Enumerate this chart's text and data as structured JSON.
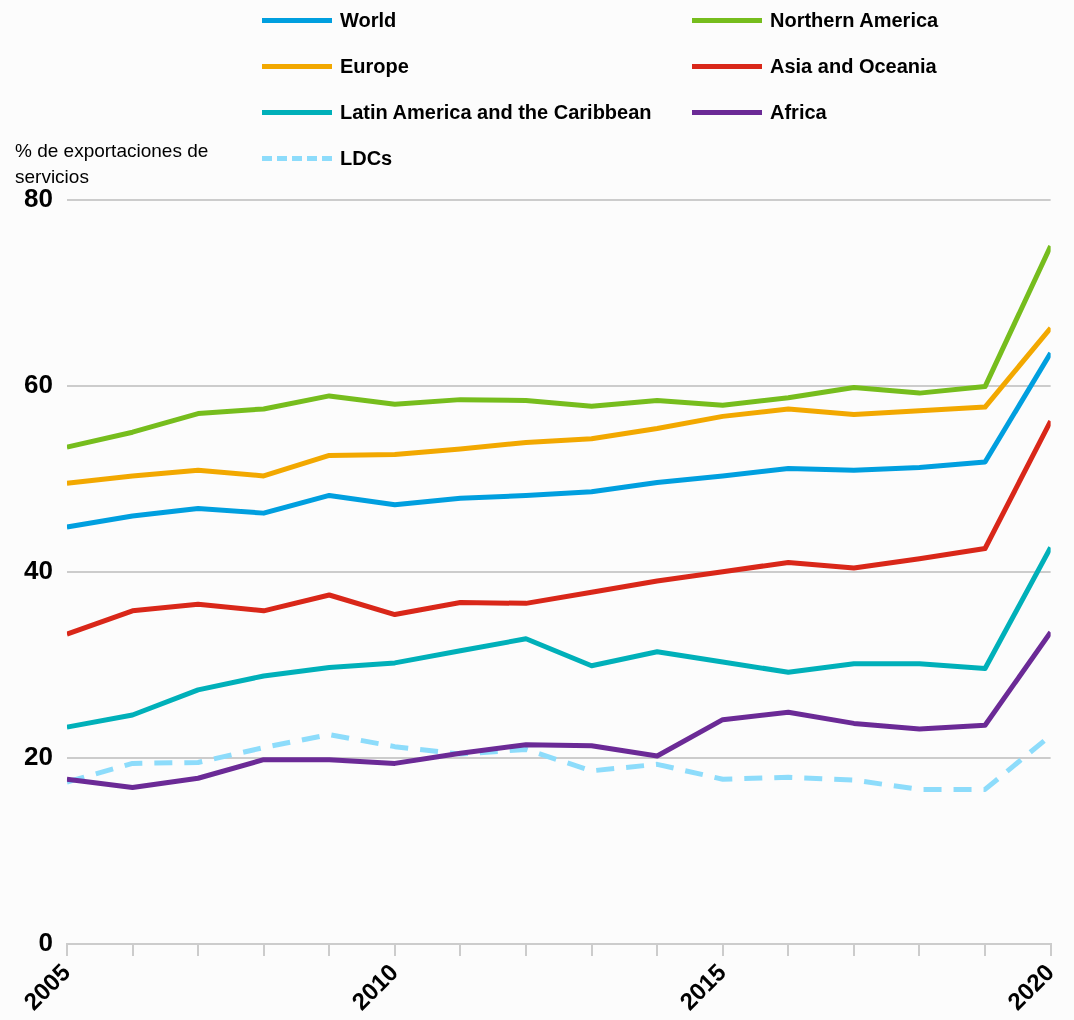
{
  "chart_data": {
    "type": "line",
    "ylabel": "% de exportaciones de servicios",
    "x": [
      2005,
      2006,
      2007,
      2008,
      2009,
      2010,
      2011,
      2012,
      2013,
      2014,
      2015,
      2016,
      2017,
      2018,
      2019,
      2020
    ],
    "xlim": [
      2005,
      2020
    ],
    "xticks": [
      2005,
      {
        "value": 2006,
        "label": null
      },
      {
        "value": 2007,
        "label": null
      },
      {
        "value": 2008,
        "label": null
      },
      {
        "value": 2009,
        "label": null
      },
      2010,
      {
        "value": 2011,
        "label": null
      },
      {
        "value": 2012,
        "label": null
      },
      {
        "value": 2013,
        "label": null
      },
      {
        "value": 2014,
        "label": null
      },
      2015,
      {
        "value": 2016,
        "label": null
      },
      {
        "value": 2017,
        "label": null
      },
      {
        "value": 2018,
        "label": null
      },
      {
        "value": 2019,
        "label": null
      },
      2020
    ],
    "ylim": [
      0,
      80
    ],
    "yticks": [
      0,
      20,
      40,
      60,
      80
    ],
    "grid": "y",
    "legend": "top",
    "marker": "none",
    "series": [
      {
        "name": "World",
        "color": "#009fdf",
        "values": [
          44.8,
          46.0,
          46.8,
          46.3,
          48.2,
          47.2,
          47.9,
          48.2,
          48.6,
          49.6,
          50.3,
          51.1,
          50.9,
          51.2,
          51.8,
          63.5
        ]
      },
      {
        "name": "Northern America",
        "color": "#76bd1d",
        "values": [
          53.4,
          55.0,
          57.0,
          57.5,
          58.9,
          58.0,
          58.5,
          58.4,
          57.8,
          58.4,
          57.9,
          58.7,
          59.8,
          59.2,
          59.9,
          75.0
        ]
      },
      {
        "name": "Europe",
        "color": "#f2a800",
        "values": [
          49.5,
          50.3,
          50.9,
          50.3,
          52.5,
          52.6,
          53.2,
          53.9,
          54.3,
          55.4,
          56.7,
          57.5,
          56.9,
          57.3,
          57.7,
          66.2
        ]
      },
      {
        "name": "Asia and Oceania",
        "color": "#d92719",
        "values": [
          33.3,
          35.8,
          36.5,
          35.8,
          37.5,
          35.4,
          36.7,
          36.6,
          37.8,
          39.0,
          40.0,
          41.0,
          40.4,
          41.4,
          42.5,
          56.2
        ]
      },
      {
        "name": "Latin America and the Caribbean",
        "color": "#00b0b9",
        "values": [
          23.3,
          24.6,
          27.3,
          28.8,
          29.7,
          30.2,
          31.5,
          32.8,
          29.9,
          31.4,
          30.3,
          29.2,
          30.1,
          30.1,
          29.6,
          42.6
        ]
      },
      {
        "name": "Africa",
        "color": "#6b2a96",
        "values": [
          17.7,
          16.8,
          17.8,
          19.8,
          19.8,
          19.4,
          20.5,
          21.4,
          21.3,
          20.2,
          24.1,
          24.9,
          23.7,
          23.1,
          23.5,
          33.5
        ]
      },
      {
        "name": "LDCs",
        "color": "#8ddcfb",
        "line_style": "dashed",
        "values": [
          17.4,
          19.4,
          19.5,
          21.1,
          22.5,
          21.2,
          20.4,
          20.9,
          18.6,
          19.3,
          17.7,
          17.9,
          17.6,
          16.6,
          16.6,
          22.4
        ]
      }
    ]
  }
}
